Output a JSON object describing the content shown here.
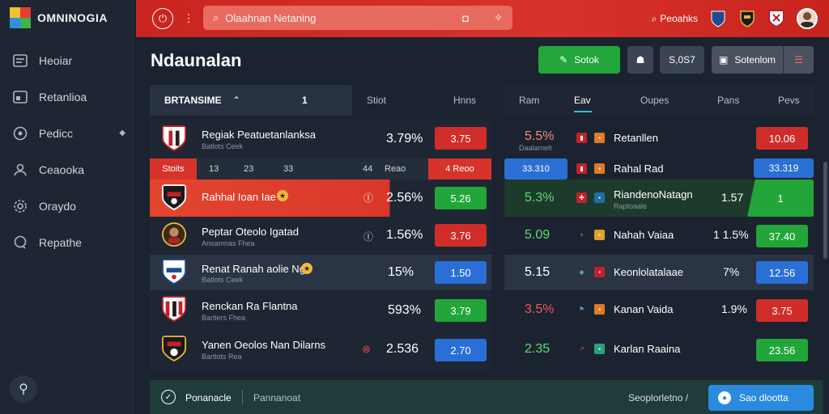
{
  "app": {
    "name": "OMNINOGIA"
  },
  "sidebar": {
    "items": [
      {
        "label": "Heoiar",
        "icon": "list-icon"
      },
      {
        "label": "Retanlioa",
        "icon": "calendar-icon"
      },
      {
        "label": "Pedicc",
        "icon": "globe-icon"
      },
      {
        "label": "Ceaooka",
        "icon": "user-icon"
      },
      {
        "label": "Oraydo",
        "icon": "gear-icon"
      },
      {
        "label": "Repathe",
        "icon": "chat-icon"
      }
    ]
  },
  "header": {
    "search_placeholder": "Olaahnan Netaning",
    "right_label": "Peoahks"
  },
  "page": {
    "title": "Ndaunalan"
  },
  "toolbar": {
    "primary_label": "Sotok",
    "stat_label": "S,0S7",
    "filter_label": "Sotenlom"
  },
  "left_table": {
    "header_label": "BRTANSIME",
    "header_value": "1",
    "col_a": "Stiot",
    "col_b": "Hnns",
    "subheader": {
      "tag": "Stoits",
      "c1": "13",
      "c2": "23",
      "c3": "33",
      "c4": "44",
      "c5": "Reao",
      "tag2": "4 Reoo"
    },
    "rows": [
      {
        "name": "Regiak Peatuetanlanksa",
        "sub": "Batlots Ceek",
        "pct": "3.79%",
        "value": "3.75",
        "color": "#d02d2a",
        "mark": ""
      },
      {
        "name": "Rahhal Ioan Iae",
        "sub": "",
        "pct": "2.56%",
        "value": "5.26",
        "color": "#22a63a",
        "mark": "Ⓘ"
      },
      {
        "name": "Peptar Oteolo Igatad",
        "sub": "Ansamnas Fhea",
        "pct": "1.56%",
        "value": "3.76",
        "color": "#d02d2a",
        "mark": "Ⓘ"
      },
      {
        "name": "Renat Ranah aolie Ng",
        "sub": "Batlots Ceek",
        "pct": "15%",
        "value": "1.50",
        "color": "#2a6fd6",
        "mark": ""
      },
      {
        "name": "Renckan Ra Flantna",
        "sub": "Bartlers Fhea",
        "pct": "593%",
        "value": "3.79",
        "color": "#22a63a",
        "mark": ""
      },
      {
        "name": "Yanen Oeolos Nan Dilarns",
        "sub": "Bartlots Rea",
        "pct": "2.536",
        "value": "2.70",
        "color": "#2a6fd6",
        "mark": "⊗"
      }
    ]
  },
  "right_table": {
    "tabs": [
      "Ram",
      "Eav",
      "Oupes",
      "Pans",
      "Pevs"
    ],
    "active_tab": "Eav",
    "rows": [
      {
        "pct": "5.5%",
        "sub": "Daalamelt",
        "name": "Retanllen",
        "sub2": "",
        "num": "",
        "value": "10.06",
        "color": "#d02d2a"
      },
      {
        "pct": "",
        "sub": "",
        "name": "Rahal Rad",
        "sub2": "",
        "num": "",
        "value": "33.319",
        "color": "#2a6fd6",
        "pill_left": "33.310"
      },
      {
        "pct": "5.3%",
        "sub": "",
        "name": "RiandenoNatagn",
        "sub2": "Raptoaale",
        "num": "1.57",
        "value": "1",
        "color": "#22a63a"
      },
      {
        "pct": "5.09",
        "sub": "",
        "name": "Nahah Vaiaa",
        "sub2": "",
        "num": "1 1.5%",
        "value": "37.40",
        "color": "#22a63a"
      },
      {
        "pct": "5.15",
        "sub": "",
        "name": "Keonlolatalaae",
        "sub2": "",
        "num": "7%",
        "value": "12.56",
        "color": "#2a6fd6"
      },
      {
        "pct": "3.5%",
        "sub": "",
        "name": "Kanan Vaida",
        "sub2": "",
        "num": "1.9%",
        "value": "3.75",
        "color": "#d02d2a"
      },
      {
        "pct": "2.35",
        "sub": "",
        "name": "Karlan Raaina",
        "sub2": "",
        "num": "",
        "value": "23.56",
        "color": "#22a63a"
      }
    ]
  },
  "footer": {
    "label": "Ponanacle",
    "sub": "Pannanoat",
    "right_text": "Seoplorletno /",
    "cta_label": "Sao dlootta"
  }
}
